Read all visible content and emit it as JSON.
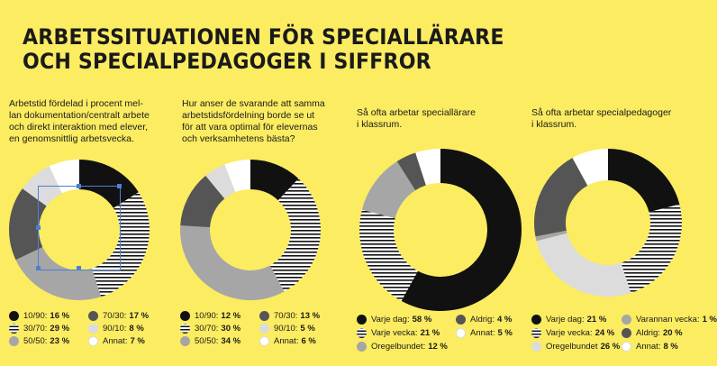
{
  "title_lines": [
    "ARBETSSITUATIONEN FÖR SPECIALLÄRARE",
    "OCH SPECIALPEDAGOGER I SIFFROR"
  ],
  "colors": {
    "background": "#fbec61",
    "black": "#111111",
    "dark_gray": "#555555",
    "mid_gray": "#a6a6a6",
    "light_gray": "#dcdcdc",
    "white": "#ffffff",
    "pattern": "stripes"
  },
  "chart_data": [
    {
      "type": "pie",
      "description": "Arbetstid fördelad i procent mel-\nlan dokumentation/centralt arbete\noch direkt interaktion med elever,\nen genomsnittlig arbetsvecka.",
      "slices": [
        {
          "label": "10/90:",
          "value": 16,
          "display": "16 %",
          "fill": "black"
        },
        {
          "label": "30/70:",
          "value": 29,
          "display": "29 %",
          "fill": "pattern"
        },
        {
          "label": "50/50:",
          "value": 23,
          "display": "23 %",
          "fill": "mid_gray"
        },
        {
          "label": "70/30:",
          "value": 17,
          "display": "17 %",
          "fill": "dark_gray"
        },
        {
          "label": "90/10:",
          "value": 8,
          "display": "8 %",
          "fill": "light_gray"
        },
        {
          "label": "Annat:",
          "value": 7,
          "display": "7 %",
          "fill": "white"
        }
      ]
    },
    {
      "type": "pie",
      "description": "Hur anser de svarande att samma\narbetstidsfördelning borde se ut\nför att vara optimal för elevernas\noch verksamhetens bästa?",
      "slices": [
        {
          "label": "10/90:",
          "value": 12,
          "display": "12 %",
          "fill": "black"
        },
        {
          "label": "30/70:",
          "value": 30,
          "display": "30 %",
          "fill": "pattern"
        },
        {
          "label": "50/50:",
          "value": 34,
          "display": "34 %",
          "fill": "mid_gray"
        },
        {
          "label": "70/30:",
          "value": 13,
          "display": "13 %",
          "fill": "dark_gray"
        },
        {
          "label": "90/10:",
          "value": 5,
          "display": "5 %",
          "fill": "light_gray"
        },
        {
          "label": "Annat:",
          "value": 6,
          "display": "6 %",
          "fill": "white"
        }
      ]
    },
    {
      "type": "pie",
      "description": "Så ofta arbetar speciallärare\ni klassrum.",
      "slices": [
        {
          "label": "Varje dag:",
          "value": 58,
          "display": "58 %",
          "fill": "black"
        },
        {
          "label": "Varje vecka:",
          "value": 21,
          "display": "21 %",
          "fill": "pattern"
        },
        {
          "label": "Oregelbundet:",
          "value": 12,
          "display": "12 %",
          "fill": "mid_gray"
        },
        {
          "label": "Aldrig:",
          "value": 4,
          "display": "4 %",
          "fill": "dark_gray"
        },
        {
          "label": "Annat:",
          "value": 5,
          "display": "5 %",
          "fill": "white"
        }
      ]
    },
    {
      "type": "pie",
      "description": "Så ofta arbetar specialpedagoger\ni klassrum.",
      "slices": [
        {
          "label": "Varje dag:",
          "value": 21,
          "display": "21 %",
          "fill": "black"
        },
        {
          "label": "Varje vecka:",
          "value": 24,
          "display": "24 %",
          "fill": "pattern"
        },
        {
          "label": "Oregelbundet",
          "value": 26,
          "display": "26 %",
          "fill": "light_gray"
        },
        {
          "label": "Varannan vecka:",
          "value": 1,
          "display": "1 %",
          "fill": "mid_gray"
        },
        {
          "label": "Aldrig:",
          "value": 20,
          "display": "20 %",
          "fill": "dark_gray"
        },
        {
          "label": "Annat:",
          "value": 8,
          "display": "8 %",
          "fill": "white"
        }
      ]
    }
  ]
}
